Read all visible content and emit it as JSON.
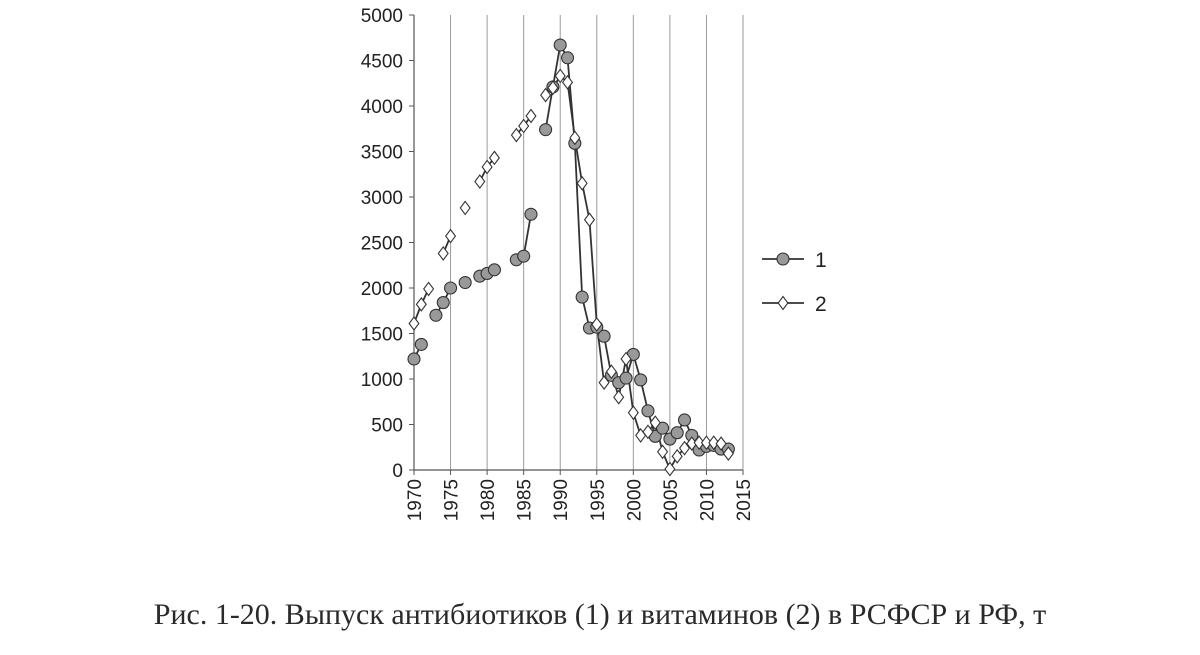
{
  "caption": "Рис. 1-20. Выпуск антибиотиков (1) и витаминов (2) в РСФСР и РФ, т",
  "chart_data": {
    "type": "line",
    "title": "",
    "xlabel": "",
    "ylabel": "",
    "xlim": [
      1970,
      2015
    ],
    "ylim": [
      0,
      5000
    ],
    "xticks": [
      1970,
      1975,
      1980,
      1985,
      1990,
      1995,
      2000,
      2005,
      2010,
      2015
    ],
    "yticks": [
      0,
      500,
      1000,
      1500,
      2000,
      2500,
      3000,
      3500,
      4000,
      4500,
      5000
    ],
    "grid": "vertical",
    "legend": "right",
    "series": [
      {
        "name": "1",
        "marker": "circle",
        "color": "#999999",
        "segments": [
          [
            [
              1970,
              1220
            ],
            [
              1971,
              1380
            ]
          ],
          [
            [
              1973,
              1700
            ],
            [
              1974,
              1840
            ],
            [
              1975,
              2000
            ]
          ],
          [
            [
              1977,
              2060
            ]
          ],
          [
            [
              1979,
              2130
            ],
            [
              1980,
              2160
            ],
            [
              1981,
              2200
            ]
          ],
          [
            [
              1984,
              2310
            ],
            [
              1985,
              2350
            ],
            [
              1986,
              2810
            ]
          ],
          [
            [
              1988,
              3740
            ],
            [
              1989,
              4210
            ],
            [
              1990,
              4670
            ],
            [
              1991,
              4530
            ],
            [
              1992,
              3590
            ],
            [
              1993,
              1900
            ],
            [
              1994,
              1560
            ],
            [
              1995,
              1570
            ],
            [
              1996,
              1470
            ],
            [
              1997,
              1040
            ],
            [
              1998,
              960
            ],
            [
              1999,
              1010
            ],
            [
              2000,
              1270
            ],
            [
              2001,
              990
            ],
            [
              2002,
              650
            ],
            [
              2003,
              370
            ],
            [
              2004,
              460
            ],
            [
              2005,
              340
            ],
            [
              2006,
              410
            ],
            [
              2007,
              550
            ],
            [
              2008,
              380
            ],
            [
              2009,
              220
            ],
            [
              2010,
              260
            ],
            [
              2011,
              270
            ],
            [
              2012,
              230
            ],
            [
              2013,
              230
            ]
          ]
        ]
      },
      {
        "name": "2",
        "marker": "diamond",
        "color": "#ffffff",
        "segments": [
          [
            [
              1970,
              1610
            ],
            [
              1971,
              1820
            ],
            [
              1972,
              1990
            ]
          ],
          [
            [
              1974,
              2380
            ],
            [
              1975,
              2570
            ]
          ],
          [
            [
              1977,
              2880
            ]
          ],
          [
            [
              1979,
              3170
            ],
            [
              1980,
              3330
            ],
            [
              1981,
              3430
            ]
          ],
          [
            [
              1984,
              3680
            ],
            [
              1985,
              3780
            ],
            [
              1986,
              3890
            ]
          ],
          [
            [
              1988,
              4120
            ],
            [
              1989,
              4200
            ],
            [
              1990,
              4330
            ],
            [
              1991,
              4260
            ],
            [
              1992,
              3650
            ],
            [
              1993,
              3150
            ],
            [
              1994,
              2750
            ],
            [
              1995,
              1600
            ],
            [
              1996,
              960
            ],
            [
              1997,
              1080
            ],
            [
              1998,
              800
            ],
            [
              1999,
              1220
            ],
            [
              2000,
              630
            ],
            [
              2001,
              380
            ],
            [
              2002,
              420
            ],
            [
              2003,
              520
            ],
            [
              2004,
              200
            ],
            [
              2005,
              10
            ],
            [
              2006,
              150
            ],
            [
              2007,
              240
            ],
            [
              2008,
              290
            ],
            [
              2009,
              300
            ],
            [
              2010,
              300
            ],
            [
              2011,
              300
            ],
            [
              2012,
              290
            ],
            [
              2013,
              180
            ]
          ]
        ]
      }
    ]
  }
}
